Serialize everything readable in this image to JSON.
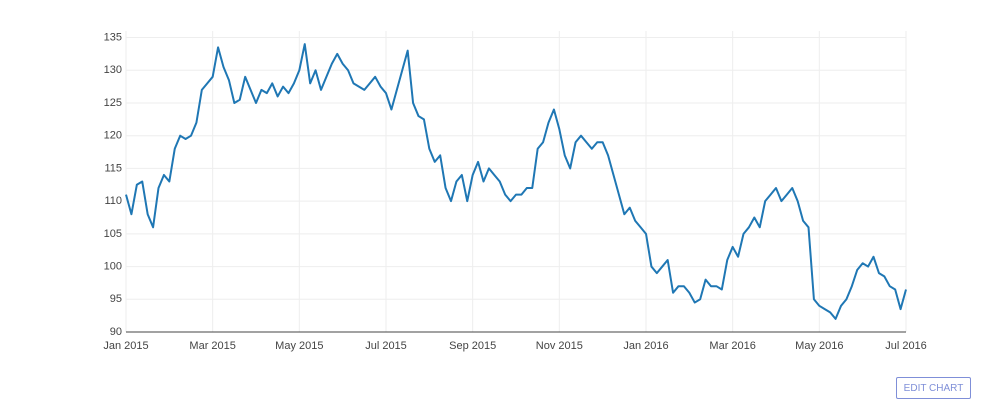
{
  "chart_data": {
    "type": "line",
    "series": [
      {
        "color": "#1f77b4",
        "values": [
          111,
          108,
          112.5,
          113,
          108,
          106,
          112,
          114,
          113,
          118,
          120,
          119.5,
          120,
          122,
          127,
          128,
          129,
          133.5,
          130.5,
          128.5,
          125,
          125.5,
          129,
          127,
          125,
          127,
          126.5,
          128,
          126,
          127.5,
          126.5,
          128,
          130,
          134,
          128,
          130,
          127,
          129,
          131,
          132.5,
          131,
          130,
          128,
          127.5,
          127,
          128,
          129,
          127.5,
          126.5,
          124,
          127,
          130,
          133,
          125,
          123,
          122.5,
          118,
          116,
          117,
          112,
          110,
          113,
          114,
          110,
          114,
          116,
          113,
          115,
          114,
          113,
          111,
          110,
          111,
          111,
          112,
          112,
          118,
          119,
          122,
          124,
          121,
          117,
          115,
          119,
          120,
          119,
          118,
          119,
          119,
          117,
          114,
          111,
          108,
          109,
          107,
          106,
          105,
          100,
          99,
          100,
          101,
          96,
          97,
          97,
          96,
          94.5,
          95,
          98,
          97,
          97,
          96.5,
          101,
          103,
          101.5,
          105,
          106,
          107.5,
          106,
          110,
          111,
          112,
          110,
          111,
          112,
          110,
          107,
          106,
          95,
          94,
          93.5,
          93,
          92,
          94,
          95,
          97,
          99.5,
          100.5,
          100,
          101.5,
          99,
          98.5,
          97,
          96.5,
          93.5,
          96.5
        ]
      }
    ],
    "xlim": [
      "2015-01",
      "2016-07"
    ],
    "xticks": [
      {
        "value": "2015-01",
        "label": "Jan 2015"
      },
      {
        "value": "2015-03",
        "label": "Mar 2015"
      },
      {
        "value": "2015-05",
        "label": "May 2015"
      },
      {
        "value": "2015-07",
        "label": "Jul 2015"
      },
      {
        "value": "2015-09",
        "label": "Sep 2015"
      },
      {
        "value": "2015-11",
        "label": "Nov 2015"
      },
      {
        "value": "2016-01",
        "label": "Jan 2016"
      },
      {
        "value": "2016-03",
        "label": "Mar 2016"
      },
      {
        "value": "2016-05",
        "label": "May 2016"
      },
      {
        "value": "2016-07",
        "label": "Jul 2016"
      }
    ],
    "ylim": [
      90,
      136
    ],
    "yticks": [
      90,
      95,
      100,
      105,
      110,
      115,
      120,
      125,
      130,
      135
    ],
    "grid": true
  },
  "edit_button": "EDIT CHART"
}
